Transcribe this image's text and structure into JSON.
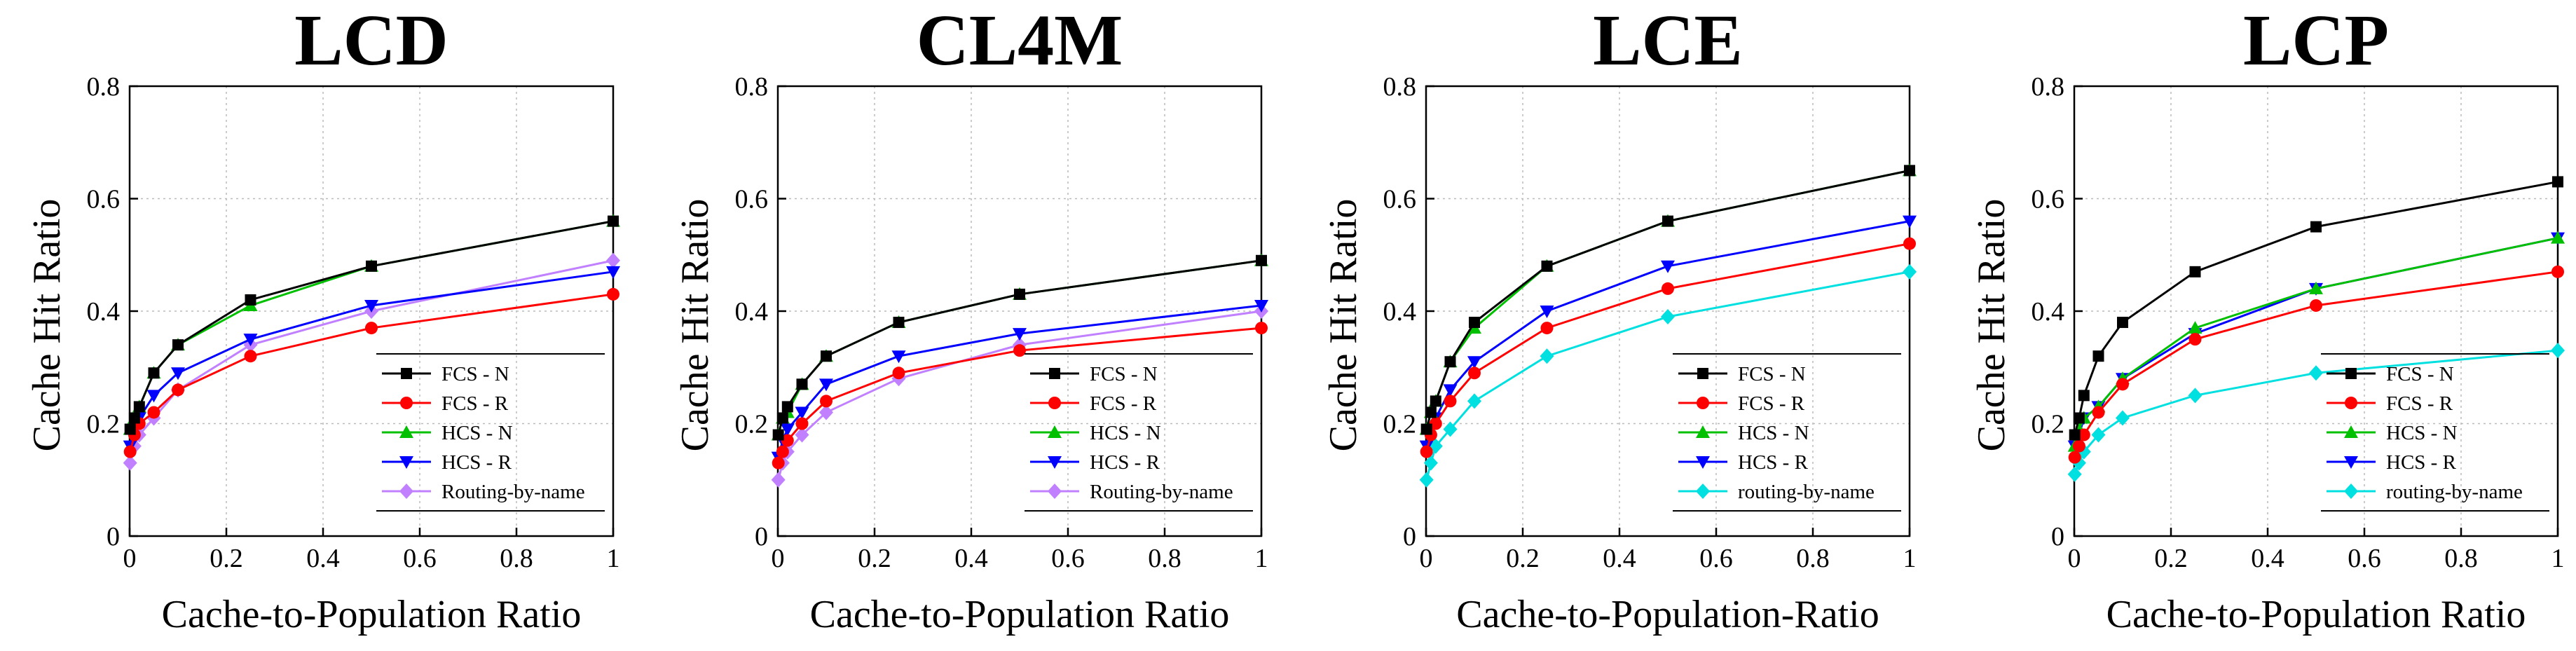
{
  "chart_data": [
    {
      "type": "line",
      "title": "LCD",
      "xlabel": "Cache-to-Population Ratio",
      "ylabel": "Cache Hit Ratio",
      "xlim": [
        0,
        1
      ],
      "ylim": [
        0,
        0.8
      ],
      "xticks": [
        "0",
        "0.2",
        "0.4",
        "0.6",
        "0.8",
        "1"
      ],
      "yticks": [
        "0",
        "0.2",
        "0.4",
        "0.6",
        "0.8"
      ],
      "grid": true,
      "legend_position": "bottom-right",
      "x": [
        0.001,
        0.01,
        0.02,
        0.05,
        0.1,
        0.25,
        0.5,
        1
      ],
      "series": [
        {
          "name": "FCS - N",
          "color": "#000000",
          "marker": "square",
          "values": [
            0.19,
            0.21,
            0.23,
            0.29,
            0.34,
            0.42,
            0.48,
            0.56
          ]
        },
        {
          "name": "FCS - R",
          "color": "#ff0000",
          "marker": "circle",
          "values": [
            0.15,
            0.18,
            0.2,
            0.22,
            0.26,
            0.32,
            0.37,
            0.43
          ]
        },
        {
          "name": "HCS - N",
          "color": "#00c000",
          "marker": "triangle-up",
          "values": [
            0.19,
            0.21,
            0.23,
            0.29,
            0.34,
            0.41,
            0.48,
            0.56
          ]
        },
        {
          "name": "HCS - R",
          "color": "#0000ff",
          "marker": "triangle-down",
          "values": [
            0.16,
            0.19,
            0.21,
            0.25,
            0.29,
            0.35,
            0.41,
            0.47
          ]
        },
        {
          "name": "Routing-by-name",
          "color": "#c080ff",
          "marker": "diamond",
          "values": [
            0.13,
            0.16,
            0.18,
            0.21,
            0.26,
            0.34,
            0.4,
            0.49
          ]
        }
      ]
    },
    {
      "type": "line",
      "title": "CL4M",
      "xlabel": "Cache-to-Population Ratio",
      "ylabel": "Cache Hit Ratio",
      "xlim": [
        0,
        1
      ],
      "ylim": [
        0,
        0.8
      ],
      "xticks": [
        "0",
        "0.2",
        "0.4",
        "0.6",
        "0.8",
        "1"
      ],
      "yticks": [
        "0",
        "0.2",
        "0.4",
        "0.6",
        "0.8"
      ],
      "grid": true,
      "legend_position": "bottom-right",
      "x": [
        0.001,
        0.01,
        0.02,
        0.05,
        0.1,
        0.25,
        0.5,
        1
      ],
      "series": [
        {
          "name": "FCS - N",
          "color": "#000000",
          "marker": "square",
          "values": [
            0.18,
            0.21,
            0.23,
            0.27,
            0.32,
            0.38,
            0.43,
            0.49
          ]
        },
        {
          "name": "FCS - R",
          "color": "#ff0000",
          "marker": "circle",
          "values": [
            0.13,
            0.15,
            0.17,
            0.2,
            0.24,
            0.29,
            0.33,
            0.37
          ]
        },
        {
          "name": "HCS - N",
          "color": "#00c000",
          "marker": "triangle-up",
          "values": [
            0.18,
            0.21,
            0.22,
            0.27,
            0.32,
            0.38,
            0.43,
            0.49
          ]
        },
        {
          "name": "HCS - R",
          "color": "#0000ff",
          "marker": "triangle-down",
          "values": [
            0.14,
            0.17,
            0.19,
            0.22,
            0.27,
            0.32,
            0.36,
            0.41
          ]
        },
        {
          "name": "Routing-by-name",
          "color": "#c080ff",
          "marker": "diamond",
          "values": [
            0.1,
            0.13,
            0.15,
            0.18,
            0.22,
            0.28,
            0.34,
            0.4
          ]
        }
      ]
    },
    {
      "type": "line",
      "title": "LCE",
      "xlabel": "Cache-to-Population-Ratio",
      "ylabel": "Cache Hit Ratio",
      "xlim": [
        0,
        1
      ],
      "ylim": [
        0,
        0.8
      ],
      "xticks": [
        "0",
        "0.2",
        "0.4",
        "0.6",
        "0.8",
        "1"
      ],
      "yticks": [
        "0",
        "0.2",
        "0.4",
        "0.6",
        "0.8"
      ],
      "grid": true,
      "legend_position": "bottom-right",
      "x": [
        0.001,
        0.01,
        0.02,
        0.05,
        0.1,
        0.25,
        0.5,
        1
      ],
      "series": [
        {
          "name": "FCS - N",
          "color": "#000000",
          "marker": "square",
          "values": [
            0.19,
            0.22,
            0.24,
            0.31,
            0.38,
            0.48,
            0.56,
            0.65
          ]
        },
        {
          "name": "FCS - R",
          "color": "#ff0000",
          "marker": "circle",
          "values": [
            0.15,
            0.18,
            0.2,
            0.24,
            0.29,
            0.37,
            0.44,
            0.52
          ]
        },
        {
          "name": "HCS - N",
          "color": "#00c000",
          "marker": "triangle-up",
          "values": [
            0.19,
            0.22,
            0.24,
            0.31,
            0.37,
            0.48,
            0.56,
            0.65
          ]
        },
        {
          "name": "HCS - R",
          "color": "#0000ff",
          "marker": "triangle-down",
          "values": [
            0.16,
            0.19,
            0.21,
            0.26,
            0.31,
            0.4,
            0.48,
            0.56
          ]
        },
        {
          "name": "routing-by-name",
          "color": "#00e0e0",
          "marker": "diamond",
          "values": [
            0.1,
            0.13,
            0.16,
            0.19,
            0.24,
            0.32,
            0.39,
            0.47
          ]
        }
      ]
    },
    {
      "type": "line",
      "title": "LCP",
      "xlabel": "Cache-to-Population Ratio",
      "ylabel": "Cache Hit Ratio",
      "xlim": [
        0,
        1
      ],
      "ylim": [
        0,
        0.8
      ],
      "xticks": [
        "0",
        "0.2",
        "0.4",
        "0.6",
        "0.8",
        "1"
      ],
      "yticks": [
        "0",
        "0.2",
        "0.4",
        "0.6",
        "0.8"
      ],
      "grid": true,
      "legend_position": "bottom-right",
      "x": [
        0.001,
        0.01,
        0.02,
        0.05,
        0.1,
        0.25,
        0.5,
        1
      ],
      "series": [
        {
          "name": "FCS - N",
          "color": "#000000",
          "marker": "square",
          "values": [
            0.18,
            0.21,
            0.25,
            0.32,
            0.38,
            0.47,
            0.55,
            0.63
          ]
        },
        {
          "name": "FCS - R",
          "color": "#ff0000",
          "marker": "circle",
          "values": [
            0.14,
            0.16,
            0.18,
            0.22,
            0.27,
            0.35,
            0.41,
            0.47
          ]
        },
        {
          "name": "HCS - N",
          "color": "#00c000",
          "marker": "triangle-up",
          "values": [
            0.16,
            0.19,
            0.21,
            0.23,
            0.28,
            0.37,
            0.44,
            0.53
          ]
        },
        {
          "name": "HCS - R",
          "color": "#0000ff",
          "marker": "triangle-down",
          "values": [
            0.16,
            0.18,
            0.21,
            0.23,
            0.28,
            0.36,
            0.44,
            0.53
          ]
        },
        {
          "name": "routing-by-name",
          "color": "#00e0e0",
          "marker": "diamond",
          "values": [
            0.11,
            0.13,
            0.15,
            0.18,
            0.21,
            0.25,
            0.29,
            0.33
          ]
        }
      ]
    }
  ]
}
